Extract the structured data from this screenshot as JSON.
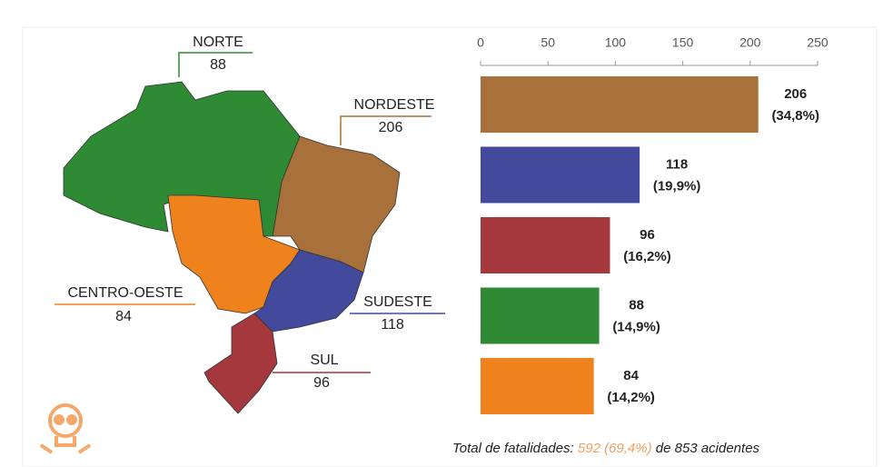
{
  "chart_data": {
    "type": "bar",
    "categories": [
      "NORDESTE",
      "SUDESTE",
      "SUL",
      "NORTE",
      "CENTRO-OESTE"
    ],
    "values": [
      206,
      118,
      96,
      88,
      84
    ],
    "percentages": [
      34.8,
      19.9,
      16.2,
      14.9,
      14.2
    ],
    "percentage_labels": [
      "(34,8%)",
      "(19,9%)",
      "(16,2%)",
      "(14,9%)",
      "(14,2%)"
    ],
    "colors": [
      "#a8703a",
      "#434a9c",
      "#a4383c",
      "#2f8a34",
      "#f0821e"
    ],
    "orientation": "horizontal",
    "xlim": [
      0,
      250
    ],
    "xticks": [
      0,
      50,
      100,
      150,
      200,
      250
    ],
    "footer_prefix": "Total de fatalidades:",
    "footer_highlight": "592 (69,4%)",
    "footer_suffix": "de 853 acidentes"
  }
}
